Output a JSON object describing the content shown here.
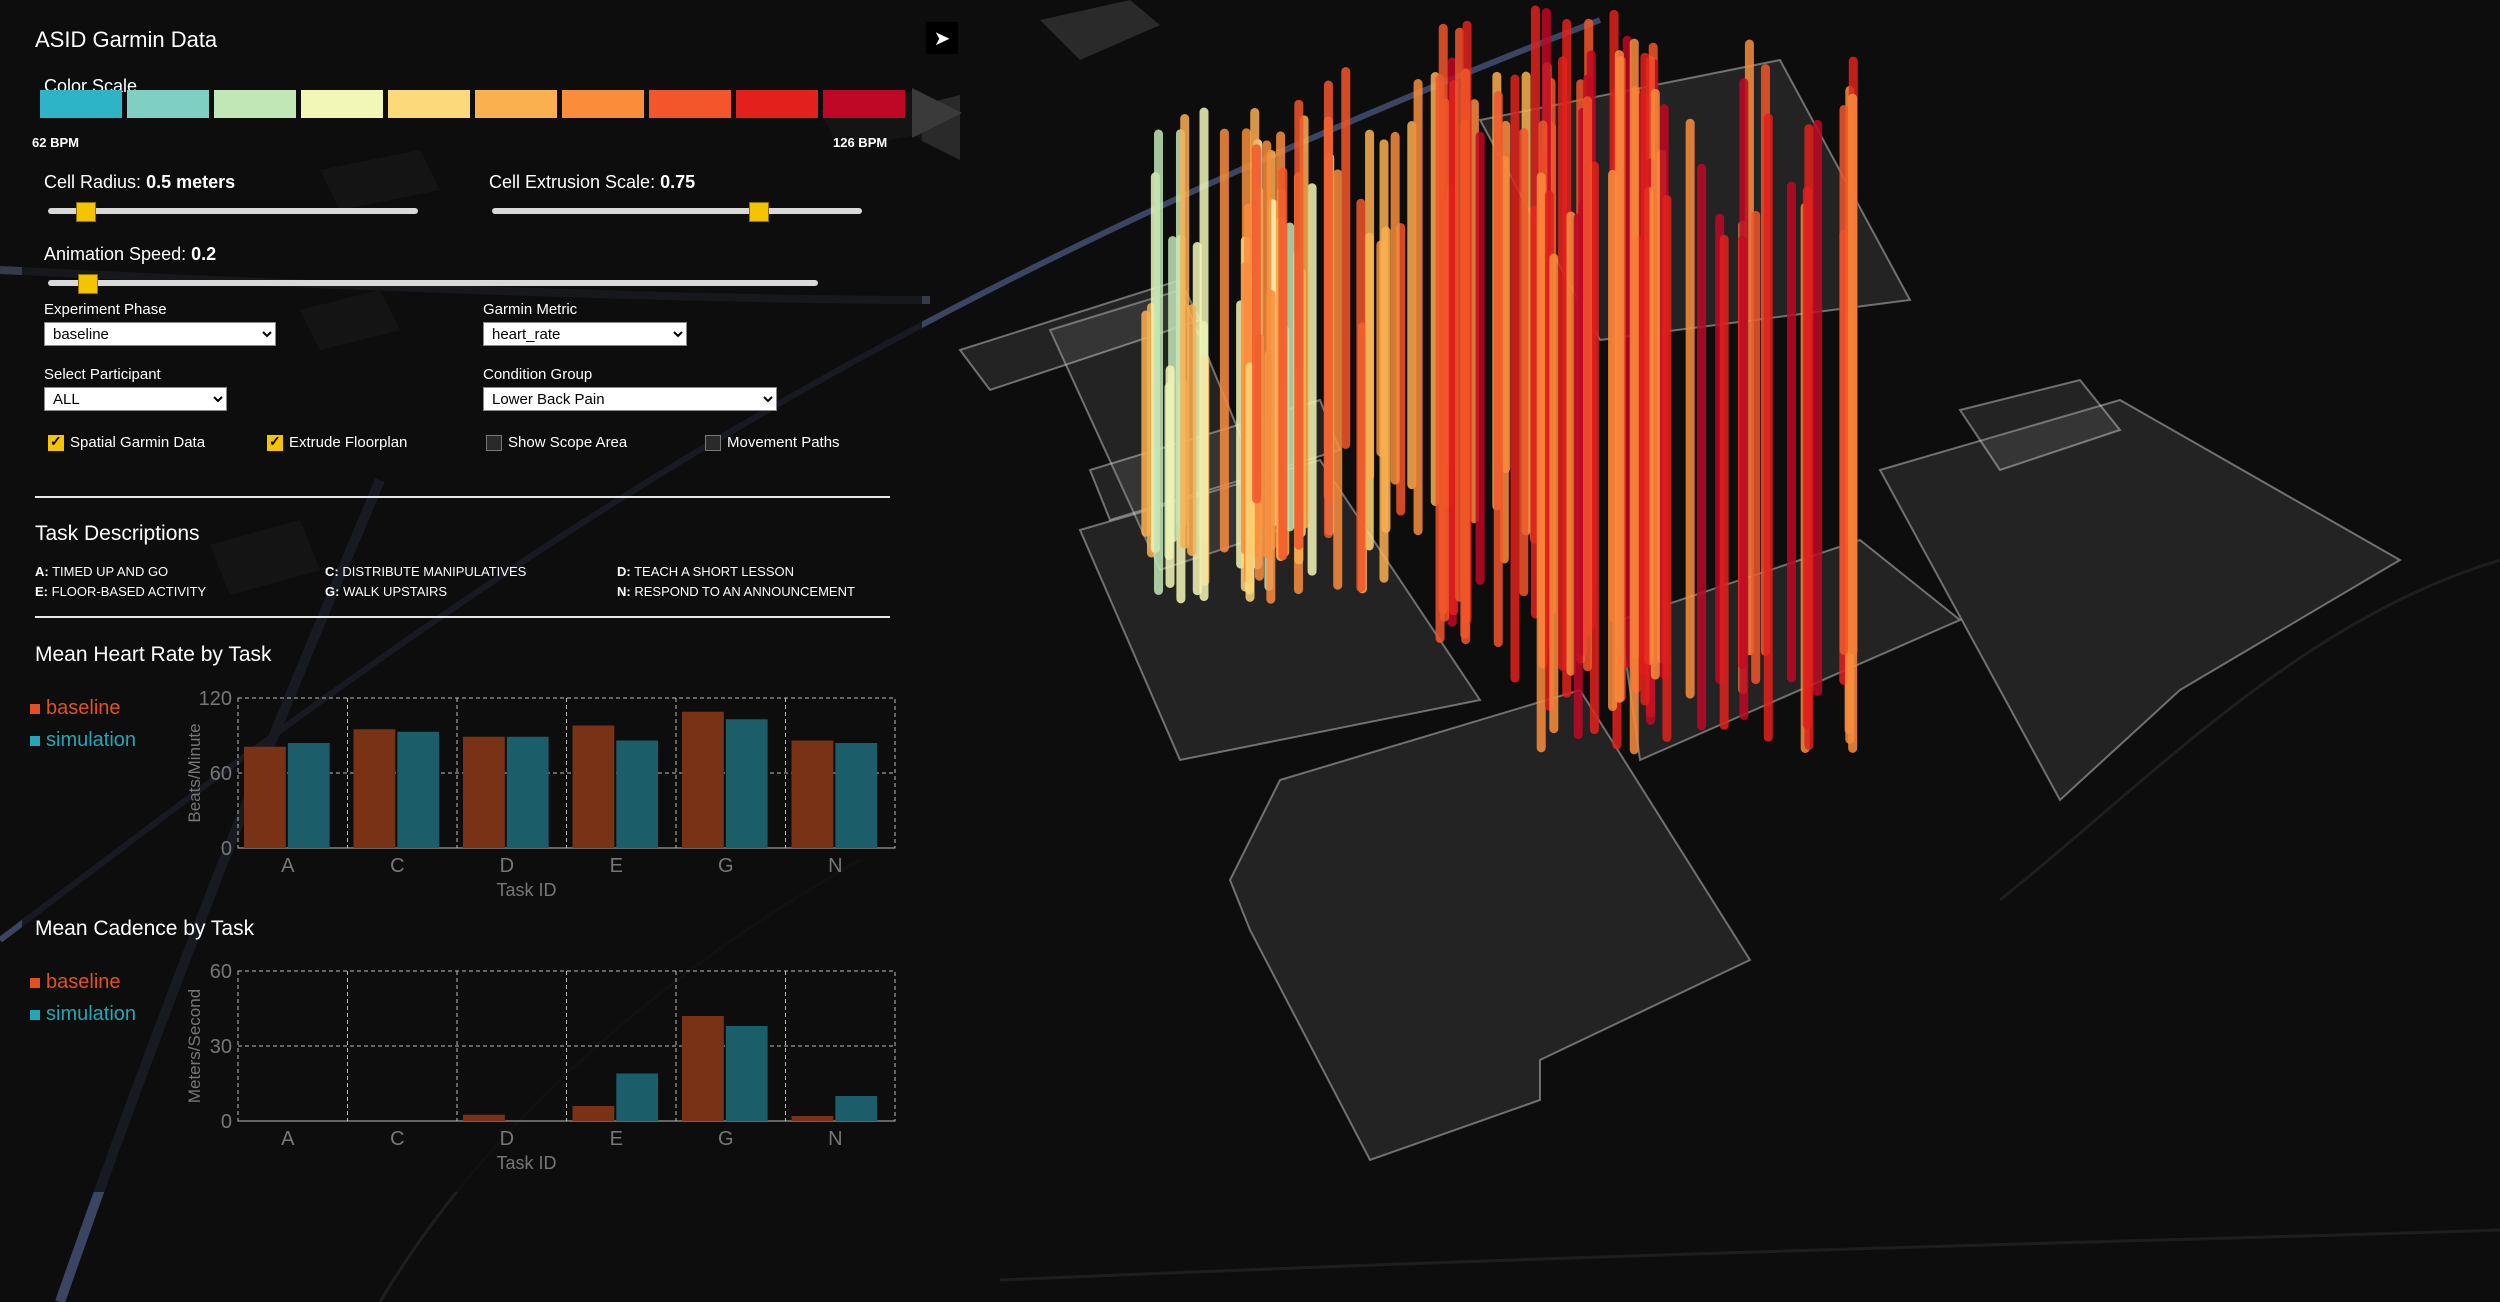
{
  "app": {
    "title": "ASID Garmin Data"
  },
  "color_scale": {
    "label": "Color Scale",
    "min_label": "62 BPM",
    "max_label": "126 BPM",
    "colors": [
      "#2fb3c6",
      "#7fd0c2",
      "#c3e6b6",
      "#f3f7b5",
      "#fcd97a",
      "#fbb04f",
      "#f98d3c",
      "#f2562a",
      "#e2211c",
      "#bf0825"
    ]
  },
  "controls": {
    "cell_radius": {
      "label": "Cell Radius:",
      "value": "0.5 meters",
      "fraction": 0.1
    },
    "cell_extrusion": {
      "label": "Cell Extrusion Scale:",
      "value": "0.75",
      "fraction": 0.72
    },
    "animation_speed": {
      "label": "Animation Speed:",
      "value": "0.2",
      "fraction": 0.05
    },
    "experiment_phase": {
      "label": "Experiment Phase",
      "value": "baseline"
    },
    "garmin_metric": {
      "label": "Garmin Metric",
      "value": "heart_rate"
    },
    "participant": {
      "label": "Select Participant",
      "value": "ALL"
    },
    "condition_group": {
      "label": "Condition Group",
      "value": "Lower Back Pain"
    },
    "checkboxes": [
      {
        "label": "Spatial Garmin Data",
        "checked": true
      },
      {
        "label": "Extrude Floorplan",
        "checked": true
      },
      {
        "label": "Show Scope Area",
        "checked": false
      },
      {
        "label": "Movement Paths",
        "checked": false
      }
    ]
  },
  "tasks": {
    "heading": "Task Descriptions",
    "items": [
      {
        "id": "A:",
        "text": "TIMED UP AND GO"
      },
      {
        "id": "C:",
        "text": "DISTRIBUTE MANIPULATIVES"
      },
      {
        "id": "D:",
        "text": "TEACH A SHORT LESSON"
      },
      {
        "id": "E:",
        "text": "FLOOR-BASED ACTIVITY"
      },
      {
        "id": "G:",
        "text": "WALK UPSTAIRS"
      },
      {
        "id": "N:",
        "text": "RESPOND TO AN ANNOUNCEMENT"
      }
    ]
  },
  "chart_data": [
    {
      "type": "bar",
      "title": "Mean Heart Rate by Task",
      "xlabel": "Task ID",
      "ylabel": "Beats/Minute",
      "categories": [
        "A",
        "C",
        "D",
        "E",
        "G",
        "N"
      ],
      "ylim": [
        0,
        120
      ],
      "yticks": [
        0,
        60,
        120
      ],
      "grid": true,
      "legend_position": "left",
      "series": [
        {
          "name": "baseline",
          "color": "#e4501f",
          "values": [
            81,
            95,
            89,
            98,
            109,
            86
          ]
        },
        {
          "name": "simulation",
          "color": "#21a7b8",
          "values": [
            84,
            93,
            89,
            86,
            103,
            84
          ]
        }
      ]
    },
    {
      "type": "bar",
      "title": "Mean Cadence by Task",
      "xlabel": "Task ID",
      "ylabel": "Meters/Second",
      "categories": [
        "A",
        "C",
        "D",
        "E",
        "G",
        "N"
      ],
      "ylim": [
        0,
        60
      ],
      "yticks": [
        0,
        30,
        60
      ],
      "grid": true,
      "legend_position": "left",
      "series": [
        {
          "name": "baseline",
          "color": "#e4501f",
          "values": [
            0,
            0,
            2.5,
            6,
            42,
            2
          ]
        },
        {
          "name": "simulation",
          "color": "#21a7b8",
          "values": [
            0,
            0,
            0,
            19,
            38,
            10
          ]
        }
      ]
    }
  ]
}
